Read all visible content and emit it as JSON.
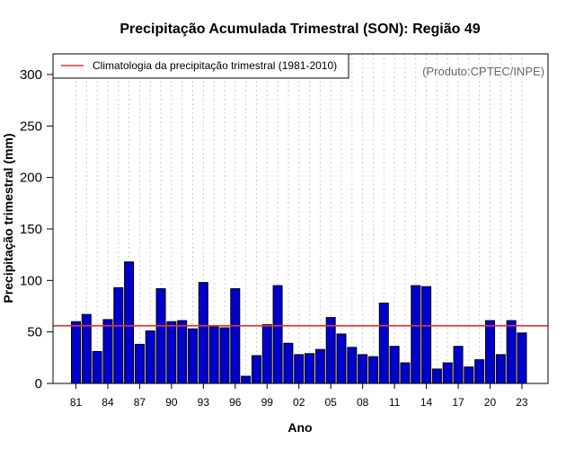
{
  "chart_data": {
    "type": "bar",
    "title": "Precipitação Acumulada Trimestral (SON): Região 49",
    "xlabel": "Ano",
    "ylabel": "Precipitação trimestral (mm)",
    "ylim": [
      0,
      320
    ],
    "yticks": [
      0,
      50,
      100,
      150,
      200,
      250,
      300
    ],
    "grid": "vertical-dotted",
    "source_note": "(Produto:CPTEC/INPE)",
    "legend": {
      "position": "top-left",
      "entries": [
        "Climatologia da precipitação trimestral (1981-2010)"
      ]
    },
    "climatology": 56,
    "years": [
      1981,
      1982,
      1983,
      1984,
      1985,
      1986,
      1987,
      1988,
      1989,
      1990,
      1991,
      1992,
      1993,
      1994,
      1995,
      1996,
      1997,
      1998,
      1999,
      2000,
      2001,
      2002,
      2003,
      2004,
      2005,
      2006,
      2007,
      2008,
      2009,
      2010,
      2011,
      2012,
      2013,
      2014,
      2015,
      2016,
      2017,
      2018,
      2019,
      2020,
      2021,
      2022,
      2023
    ],
    "values": [
      60,
      67,
      31,
      62,
      93,
      118,
      38,
      51,
      92,
      60,
      61,
      53,
      98,
      55,
      54,
      92,
      7,
      27,
      57,
      95,
      39,
      28,
      29,
      33,
      64,
      48,
      35,
      28,
      26,
      78,
      36,
      20,
      95,
      94,
      14,
      20,
      36,
      16,
      23,
      61,
      28,
      61,
      49
    ],
    "tick_labels": [
      "81",
      "84",
      "87",
      "90",
      "93",
      "96",
      "99",
      "02",
      "05",
      "08",
      "11",
      "14",
      "17",
      "20",
      "23"
    ],
    "tick_years": [
      1981,
      1984,
      1987,
      1990,
      1993,
      1996,
      1999,
      2002,
      2005,
      2008,
      2011,
      2014,
      2017,
      2020,
      2023
    ],
    "colors": {
      "bar": "#0000cd",
      "climatology": "#e8322a",
      "grid": "#cccccc"
    }
  }
}
